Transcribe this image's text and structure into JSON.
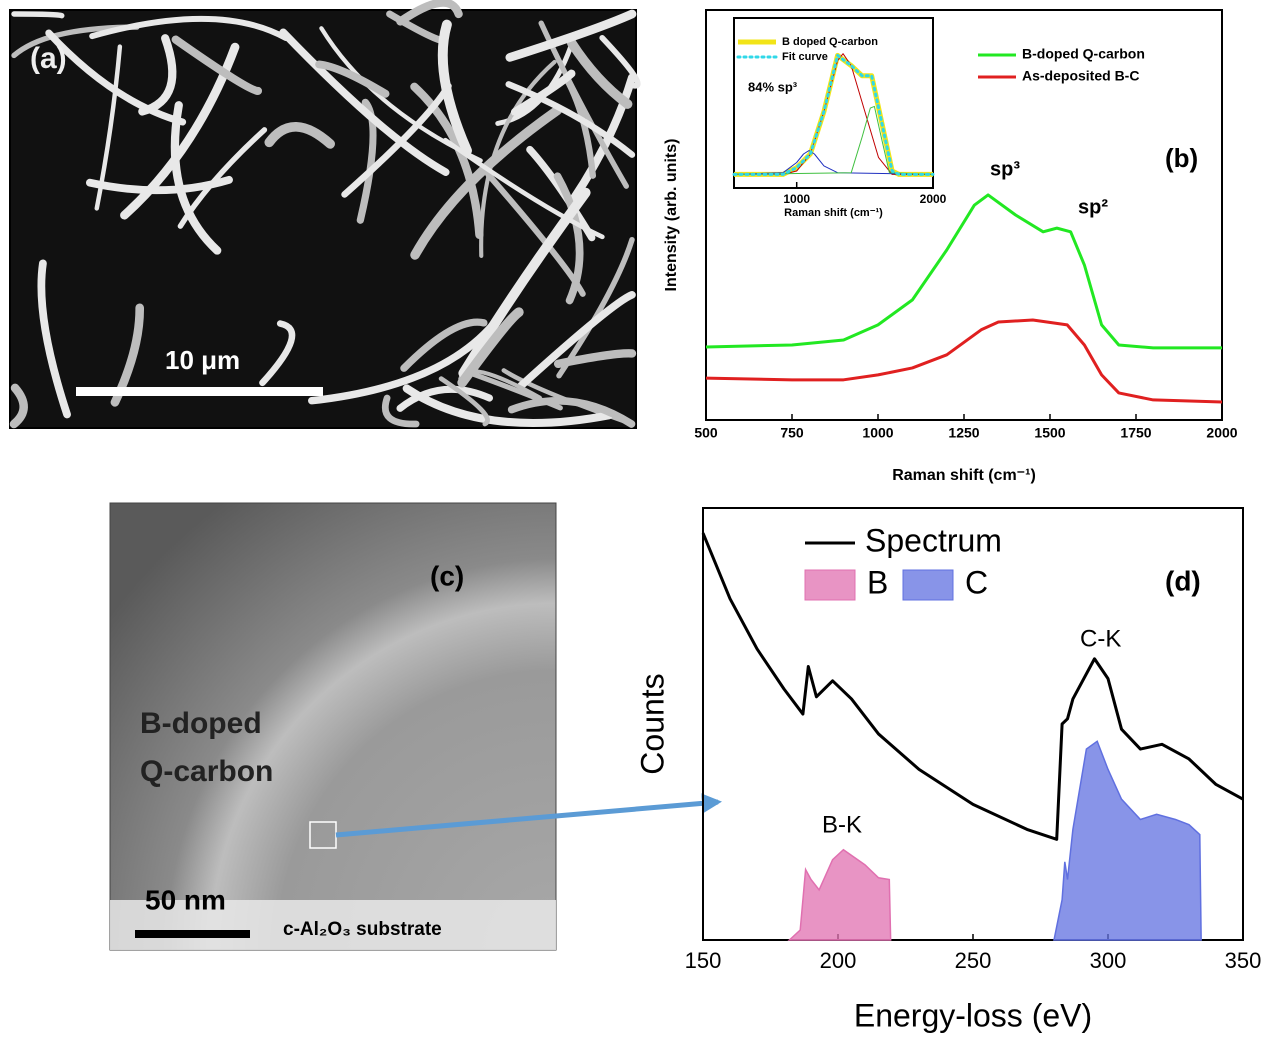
{
  "panels": [
    {
      "label": "(a)",
      "scale_bar": "10 μm"
    },
    {
      "label": "(c)",
      "text": [
        "B-doped",
        "Q-carbon"
      ],
      "scale_bar": "50 nm",
      "substrate": "c-Al₂O₃ substrate"
    }
  ],
  "chart_data": [
    {
      "type": "line",
      "panel_label": "(b)",
      "xlabel": "Raman shift (cm⁻¹)",
      "ylabel": "Intensity (arb. units)",
      "xlim": [
        500,
        2000
      ],
      "xticks": [
        500,
        750,
        1000,
        1250,
        1500,
        1750,
        2000
      ],
      "ylim": [
        0,
        100
      ],
      "annotations": [
        "sp³",
        "sp²"
      ],
      "legend": "upper right",
      "series": [
        {
          "name": "B-doped Q-carbon",
          "color": "#22e822",
          "x": [
            500,
            750,
            900,
            1000,
            1100,
            1200,
            1280,
            1320,
            1400,
            1480,
            1520,
            1560,
            1600,
            1650,
            1700,
            1800,
            2000
          ],
          "values": [
            17.8,
            18.3,
            19.5,
            23.2,
            29.3,
            41.5,
            52.4,
            54.9,
            50,
            45.9,
            46.8,
            45.9,
            37.8,
            23.2,
            18.3,
            17.6,
            17.6
          ]
        },
        {
          "name": "As-deposited B-C",
          "color": "#e02020",
          "x": [
            500,
            750,
            900,
            1000,
            1100,
            1200,
            1300,
            1350,
            1450,
            1550,
            1600,
            1650,
            1700,
            1800,
            2000
          ],
          "values": [
            10.2,
            9.8,
            9.8,
            11,
            12.7,
            15.9,
            22,
            23.9,
            24.4,
            23.2,
            18.3,
            11,
            6.6,
            4.9,
            4.4
          ]
        }
      ]
    },
    {
      "type": "line",
      "xlabel": "Raman shift (cm⁻¹)",
      "xlim": [
        540,
        2000
      ],
      "xticks": [
        1000,
        2000
      ],
      "ylim": [
        0,
        1
      ],
      "annotations": [
        "84% sp³"
      ],
      "legend": "upper left",
      "series": [
        {
          "name": "B doped Q-carbon",
          "color": "#f2e418",
          "width": 5,
          "x": [
            540,
            900,
            1000,
            1100,
            1200,
            1300,
            1400,
            1480,
            1550,
            1620,
            1700,
            1750,
            2000
          ],
          "values": [
            0.08,
            0.08,
            0.12,
            0.2,
            0.45,
            0.78,
            0.72,
            0.66,
            0.66,
            0.4,
            0.1,
            0.08,
            0.08
          ]
        },
        {
          "color": "#c00000",
          "width": 1,
          "x": [
            540,
            900,
            1000,
            1100,
            1200,
            1300,
            1340,
            1400,
            1500,
            1600,
            1700,
            1800,
            2000
          ],
          "values": [
            0.08,
            0.08,
            0.1,
            0.2,
            0.45,
            0.75,
            0.79,
            0.72,
            0.45,
            0.18,
            0.08,
            0.08,
            0.08
          ]
        },
        {
          "color": "#2030c0",
          "width": 1,
          "x": [
            540,
            900,
            1000,
            1050,
            1090,
            1130,
            1200,
            1300,
            2000
          ],
          "values": [
            0.08,
            0.09,
            0.15,
            0.2,
            0.22,
            0.2,
            0.13,
            0.09,
            0.08
          ]
        },
        {
          "color": "#40c040",
          "width": 1,
          "x": [
            540,
            1400,
            1480,
            1540,
            1570,
            1620,
            1680,
            2000
          ],
          "values": [
            0.08,
            0.09,
            0.3,
            0.47,
            0.48,
            0.3,
            0.09,
            0.08
          ]
        },
        {
          "name": "Fit curve",
          "color": "#30d8e8",
          "width": 3,
          "dash": "dotted",
          "x": [
            540,
            900,
            1000,
            1100,
            1200,
            1300,
            1400,
            1480,
            1550,
            1620,
            1700,
            1750,
            2000
          ],
          "values": [
            0.08,
            0.08,
            0.12,
            0.2,
            0.45,
            0.78,
            0.72,
            0.66,
            0.66,
            0.4,
            0.1,
            0.08,
            0.08
          ]
        }
      ]
    },
    {
      "type": "line",
      "panel_label": "(d)",
      "xlabel": "Energy-loss (eV)",
      "ylabel": "Counts",
      "xlim": [
        150,
        350
      ],
      "xticks": [
        150,
        200,
        250,
        300,
        350
      ],
      "ylim": [
        0,
        100
      ],
      "annotations": [
        "C-K",
        "B-K"
      ],
      "legend": "upper left",
      "series": [
        {
          "name": "Spectrum",
          "color": "#000000",
          "style": "line",
          "x": [
            150,
            160,
            170,
            180,
            187,
            189,
            192,
            198,
            205,
            215,
            230,
            250,
            270,
            281,
            283,
            285,
            287,
            295,
            300,
            305,
            312,
            320,
            330,
            340,
            350
          ],
          "values": [
            94.2,
            79,
            67.4,
            58.1,
            52.3,
            63.3,
            56.3,
            60,
            55.8,
            47.7,
            39.5,
            31.4,
            25.6,
            23.3,
            50,
            51.2,
            55.8,
            65.1,
            60.5,
            48.8,
            44.2,
            45.3,
            41.9,
            36,
            32.6
          ]
        },
        {
          "name": "B",
          "color": "#e070b0",
          "style": "area",
          "x": [
            182,
            186,
            188,
            190,
            193,
            198,
            202,
            210,
            215,
            219,
            219.5
          ],
          "values": [
            0,
            2.3,
            16.3,
            14,
            11.6,
            18.6,
            20.9,
            17.4,
            14.4,
            14,
            0
          ]
        },
        {
          "name": "C",
          "color": "#6070e0",
          "style": "area",
          "x": [
            280,
            283,
            284,
            285,
            287,
            292,
            296,
            300,
            305,
            312,
            318,
            325,
            330,
            334,
            334.5
          ],
          "values": [
            0,
            9.3,
            18.1,
            14,
            25.6,
            44.2,
            46,
            39.5,
            32.6,
            27.9,
            29.1,
            27.9,
            26.7,
            24.4,
            0
          ]
        }
      ]
    }
  ]
}
